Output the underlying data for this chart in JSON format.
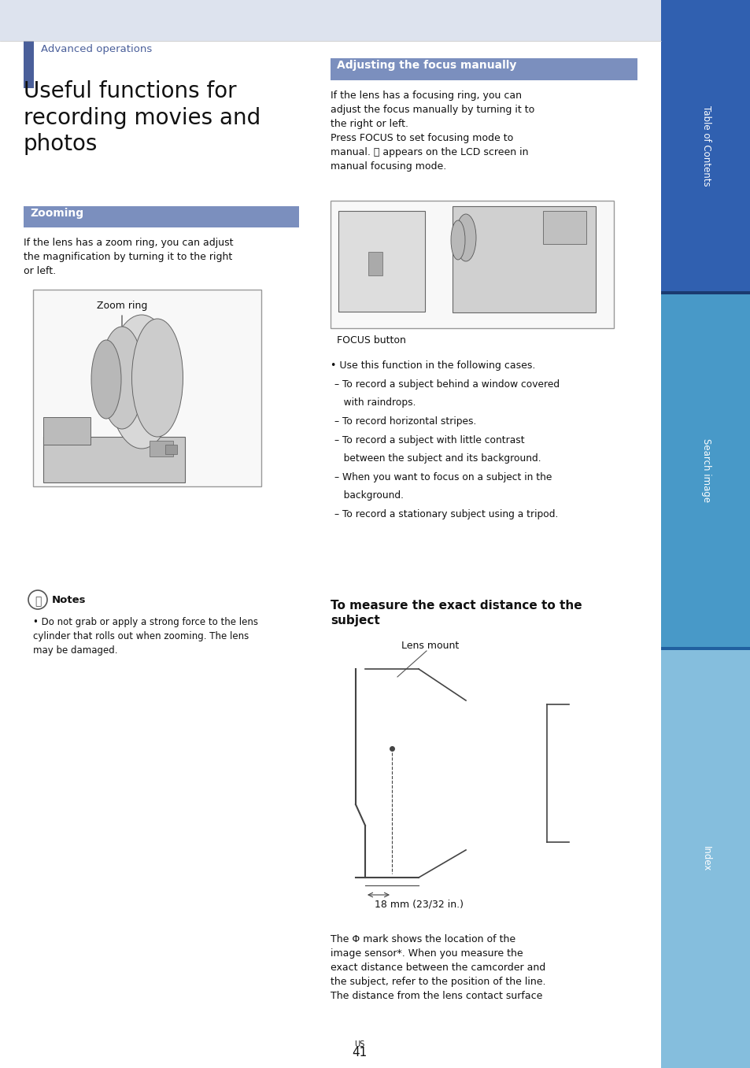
{
  "page_bg": "#ffffff",
  "top_band_color": "#dde3ee",
  "left_accent_color": "#4a5f9a",
  "adv_ops_text": "Advanced operations",
  "adv_ops_color": "#4a5f9a",
  "title_text": "Useful functions for\nrecording movies and\nphotos",
  "zoom_header_bg": "#7b8fbe",
  "zoom_header_text": "Zooming",
  "zoom_header_text_color": "#ffffff",
  "zoom_body_text": "If the lens has a zoom ring, you can adjust\nthe magnification by turning it to the right\nor left.",
  "zoom_ring_label": "Zoom ring",
  "notes_text": "Notes",
  "notes_body": "Do not grab or apply a strong force to the lens\ncylinder that rolls out when zooming. The lens\nmay be damaged.",
  "adj_header_bg": "#7b8fbe",
  "adj_header_text": "Adjusting the focus manually",
  "adj_header_text_color": "#ffffff",
  "adj_body_text": "If the lens has a focusing ring, you can\nadjust the focus manually by turning it to\nthe right or left.\nPress FOCUS to set focusing mode to\nmanual. ⓢ appears on the LCD screen in\nmanual focusing mode.",
  "focus_label": "FOCUS button",
  "bullet_text_line1": "• Use this function in the following cases.",
  "bullet_lines": [
    "– To record a subject behind a window covered",
    "   with raindrops.",
    "– To record horizontal stripes.",
    "– To record a subject with little contrast",
    "   between the subject and its background.",
    "– When you want to focus on a subject in the",
    "   background.",
    "– To record a stationary subject using a tripod."
  ],
  "subhead_text": "To measure the exact distance to the\nsubject",
  "lens_mount_label": "Lens mount",
  "lens_18mm_label": "18 mm (23/32 in.)",
  "phi_text": "The Φ mark shows the location of the\nimage sensor*. When you measure the\nexact distance between the camcorder and\nthe subject, refer to the position of the line.\nThe distance from the lens contact surface",
  "page_num": "41",
  "sidebar_top_color": "#3060b0",
  "sidebar_top_text": "Table of Contents",
  "sidebar_mid_color": "#4899c8",
  "sidebar_mid_text": "Search image",
  "sidebar_bot_color": "#85bedd",
  "sidebar_bot_text": "Index"
}
